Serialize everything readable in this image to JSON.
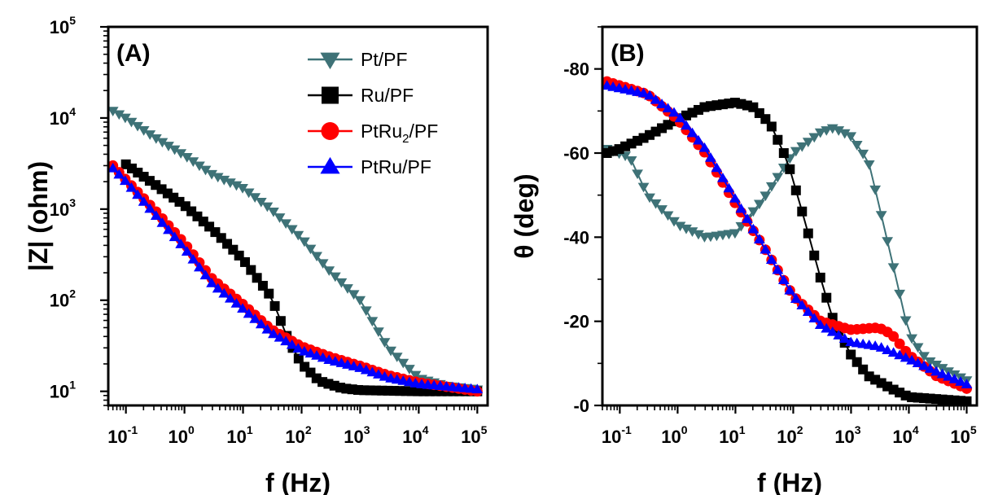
{
  "chart_data": [
    {
      "type": "scatter",
      "panel_label": "(A)",
      "xlabel": "f (Hz)",
      "ylabel": "|Z| (ohm)",
      "x_scale": "log",
      "y_scale": "log",
      "xlim": [
        0.05,
        150000
      ],
      "ylim": [
        7,
        100000
      ],
      "x_ticks": [
        {
          "value": 0.1,
          "base": "10",
          "exp": "-1"
        },
        {
          "value": 1,
          "base": "10",
          "exp": "0"
        },
        {
          "value": 10,
          "base": "10",
          "exp": "1"
        },
        {
          "value": 100,
          "base": "10",
          "exp": "2"
        },
        {
          "value": 1000,
          "base": "10",
          "exp": "3"
        },
        {
          "value": 10000,
          "base": "10",
          "exp": "4"
        },
        {
          "value": 100000,
          "base": "10",
          "exp": "5"
        }
      ],
      "y_ticks": [
        {
          "value": 10,
          "base": "10",
          "exp": "1"
        },
        {
          "value": 100,
          "base": "10",
          "exp": "2"
        },
        {
          "value": 1000,
          "base": "10",
          "exp": "3"
        },
        {
          "value": 10000,
          "base": "10",
          "exp": "4"
        },
        {
          "value": 100000,
          "base": "10",
          "exp": "5"
        }
      ],
      "legend_position": "top-right",
      "series": [
        {
          "name": "Pt/PF",
          "name_parts": [
            "Pt/PF"
          ],
          "color": "#3e7277",
          "marker": "triangle-down",
          "points": [
            [
              0.06,
              12000
            ],
            [
              0.1,
              10000
            ],
            [
              0.3,
              6200
            ],
            [
              1,
              3900
            ],
            [
              3,
              2400
            ],
            [
              10,
              1700
            ],
            [
              30,
              1000
            ],
            [
              100,
              480
            ],
            [
              300,
              210
            ],
            [
              1000,
              100
            ],
            [
              3000,
              30
            ],
            [
              10000,
              14
            ],
            [
              30000,
              11.5
            ],
            [
              100000,
              10.5
            ]
          ]
        },
        {
          "name": "Ru/PF",
          "name_parts": [
            "Ru/PF"
          ],
          "color": "#000000",
          "marker": "square",
          "points": [
            [
              0.1,
              3100
            ],
            [
              0.3,
              1900
            ],
            [
              1,
              1100
            ],
            [
              3,
              600
            ],
            [
              10,
              280
            ],
            [
              30,
              110
            ],
            [
              60,
              36
            ],
            [
              100,
              20
            ],
            [
              200,
              13
            ],
            [
              500,
              10.8
            ],
            [
              1000,
              10.3
            ],
            [
              10000,
              10
            ],
            [
              100000,
              10
            ]
          ]
        },
        {
          "name": "PtRu2/PF",
          "name_parts": [
            "PtRu",
            "2",
            "/PF"
          ],
          "color": "#ff0000",
          "marker": "circle",
          "points": [
            [
              0.06,
              3000
            ],
            [
              0.1,
              2100
            ],
            [
              0.3,
              1000
            ],
            [
              1,
              420
            ],
            [
              3,
              170
            ],
            [
              10,
              90
            ],
            [
              30,
              48
            ],
            [
              100,
              31
            ],
            [
              300,
              24
            ],
            [
              1000,
              19
            ],
            [
              3000,
              15
            ],
            [
              10000,
              12.5
            ],
            [
              100000,
              10
            ]
          ]
        },
        {
          "name": "PtRu/PF",
          "name_parts": [
            "PtRu/PF"
          ],
          "color": "#0000ff",
          "marker": "triangle-up",
          "points": [
            [
              0.06,
              2800
            ],
            [
              0.1,
              2000
            ],
            [
              0.3,
              900
            ],
            [
              1,
              370
            ],
            [
              3,
              150
            ],
            [
              10,
              80
            ],
            [
              30,
              44
            ],
            [
              100,
              28
            ],
            [
              300,
              22
            ],
            [
              1000,
              18
            ],
            [
              3000,
              14
            ],
            [
              10000,
              12
            ],
            [
              100000,
              10.5
            ]
          ]
        }
      ]
    },
    {
      "type": "scatter",
      "panel_label": "(B)",
      "xlabel": "f (Hz)",
      "ylabel": "θ (deg)",
      "x_scale": "log",
      "y_scale": "linear",
      "y_inverted": true,
      "xlim": [
        0.05,
        150000
      ],
      "ylim": [
        0,
        -90
      ],
      "x_ticks": [
        {
          "value": 0.1,
          "base": "10",
          "exp": "-1"
        },
        {
          "value": 1,
          "base": "10",
          "exp": "0"
        },
        {
          "value": 10,
          "base": "10",
          "exp": "1"
        },
        {
          "value": 100,
          "base": "10",
          "exp": "2"
        },
        {
          "value": 1000,
          "base": "10",
          "exp": "3"
        },
        {
          "value": 10000,
          "base": "10",
          "exp": "4"
        },
        {
          "value": 100000,
          "base": "10",
          "exp": "5"
        }
      ],
      "y_ticks": [
        {
          "value": 0,
          "label": "-0"
        },
        {
          "value": -20,
          "label": "-20"
        },
        {
          "value": -40,
          "label": "-40"
        },
        {
          "value": -60,
          "label": "-60"
        },
        {
          "value": -80,
          "label": "-80"
        }
      ],
      "series": [
        {
          "name": "Pt/PF",
          "color": "#3e7277",
          "marker": "triangle-down",
          "points": [
            [
              0.06,
              -61
            ],
            [
              0.15,
              -59
            ],
            [
              0.3,
              -50
            ],
            [
              1,
              -43
            ],
            [
              3,
              -40
            ],
            [
              10,
              -41
            ],
            [
              30,
              -49
            ],
            [
              100,
              -60
            ],
            [
              300,
              -65
            ],
            [
              500,
              -66
            ],
            [
              1000,
              -64
            ],
            [
              2000,
              -58
            ],
            [
              3000,
              -48
            ],
            [
              5000,
              -35
            ],
            [
              10000,
              -17
            ],
            [
              20000,
              -11
            ],
            [
              50000,
              -8
            ],
            [
              100000,
              -6
            ]
          ]
        },
        {
          "name": "Ru/PF",
          "color": "#000000",
          "marker": "square",
          "points": [
            [
              0.06,
              -60
            ],
            [
              0.1,
              -61
            ],
            [
              0.3,
              -64
            ],
            [
              1,
              -68
            ],
            [
              3,
              -71
            ],
            [
              10,
              -72
            ],
            [
              20,
              -71
            ],
            [
              40,
              -67
            ],
            [
              80,
              -58
            ],
            [
              150,
              -45
            ],
            [
              300,
              -30
            ],
            [
              500,
              -20
            ],
            [
              1000,
              -12
            ],
            [
              2000,
              -7
            ],
            [
              5000,
              -4
            ],
            [
              10000,
              -2
            ],
            [
              100000,
              -1
            ]
          ]
        },
        {
          "name": "PtRu2/PF",
          "color": "#ff0000",
          "marker": "circle",
          "points": [
            [
              0.06,
              -77
            ],
            [
              0.3,
              -74
            ],
            [
              1,
              -68
            ],
            [
              3,
              -60
            ],
            [
              10,
              -48
            ],
            [
              30,
              -38
            ],
            [
              100,
              -26
            ],
            [
              300,
              -20
            ],
            [
              1000,
              -18
            ],
            [
              3000,
              -18.5
            ],
            [
              5000,
              -17
            ],
            [
              10000,
              -12
            ],
            [
              30000,
              -7
            ],
            [
              100000,
              -4
            ]
          ]
        },
        {
          "name": "PtRu/PF",
          "color": "#0000ff",
          "marker": "triangle-up",
          "points": [
            [
              0.06,
              -76
            ],
            [
              0.3,
              -74
            ],
            [
              1,
              -69
            ],
            [
              3,
              -61
            ],
            [
              10,
              -49
            ],
            [
              30,
              -38
            ],
            [
              100,
              -26
            ],
            [
              300,
              -19
            ],
            [
              1000,
              -15
            ],
            [
              3000,
              -14
            ],
            [
              10000,
              -11
            ],
            [
              30000,
              -8
            ],
            [
              100000,
              -5
            ]
          ]
        }
      ]
    }
  ]
}
